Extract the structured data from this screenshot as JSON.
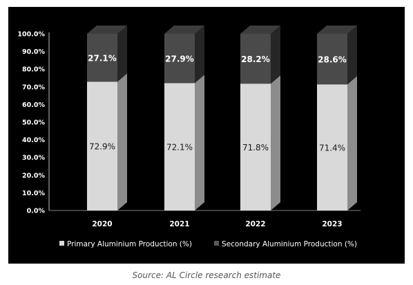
{
  "chart_data": {
    "type": "bar",
    "stacked": true,
    "style": "3d",
    "categories": [
      "2020",
      "2021",
      "2022",
      "2023"
    ],
    "series": [
      {
        "name": "Primary Aluminium Production (%)",
        "values": [
          72.9,
          72.1,
          71.8,
          71.4
        ],
        "labels": [
          "72.9%",
          "72.1%",
          "71.8%",
          "71.4%"
        ],
        "color": "#d9d9d9"
      },
      {
        "name": "Secondary Aluminium Production (%)",
        "values": [
          27.1,
          27.9,
          28.2,
          28.6
        ],
        "labels": [
          "27.1%",
          "27.9%",
          "28.2%",
          "28.6%"
        ],
        "color": "#4a4a4a"
      }
    ],
    "yticks": [
      "0.0%",
      "10.0%",
      "20.0%",
      "30.0%",
      "40.0%",
      "50.0%",
      "60.0%",
      "70.0%",
      "80.0%",
      "90.0%",
      "100.0%"
    ],
    "ylim": [
      0,
      100
    ],
    "grid": false,
    "legend_position": "bottom",
    "background": "#000000"
  },
  "caption": "Source: AL Circle research estimate"
}
